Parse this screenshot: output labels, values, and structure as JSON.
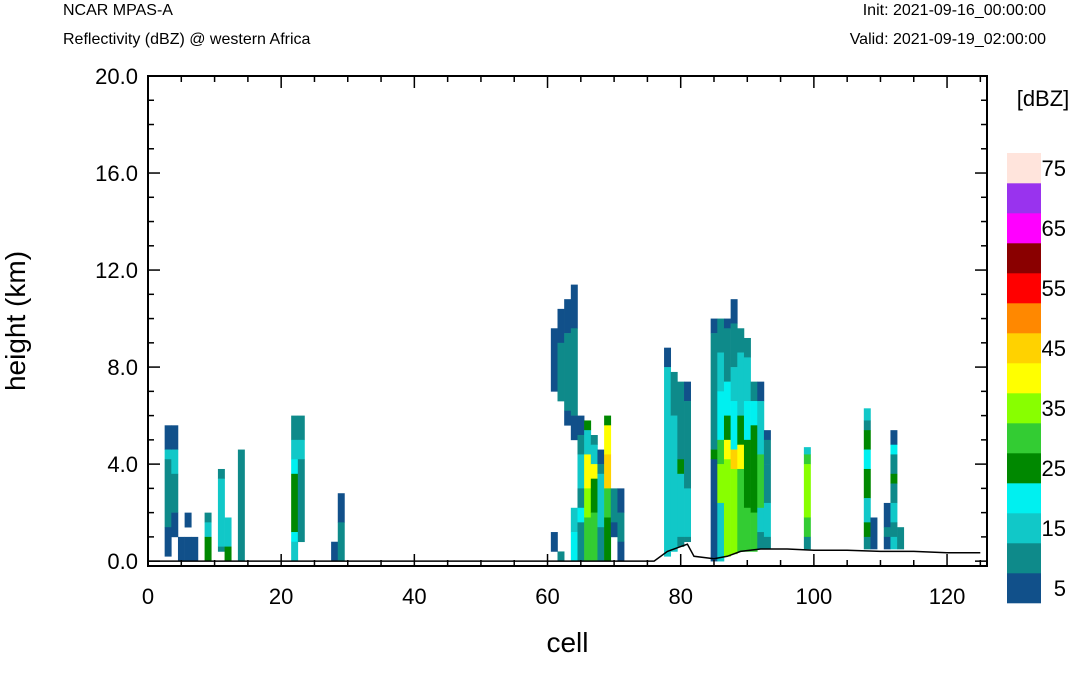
{
  "header": {
    "title": "NCAR MPAS-A",
    "subtitle": "Reflectivity (dBZ) @ western Africa",
    "init": "Init: 2021-09-16_00:00:00",
    "valid": "Valid: 2021-09-19_02:00:00"
  },
  "chart_data": {
    "type": "heatmap",
    "title": "Reflectivity (dBZ) @ western Africa",
    "xlabel": "cell",
    "ylabel": "height (km)",
    "xlim": [
      0,
      126
    ],
    "ylim": [
      -0.2,
      20.0
    ],
    "x_ticks": [
      0,
      20,
      40,
      60,
      80,
      100,
      120
    ],
    "x_tick_labels": [
      "0",
      "20",
      "40",
      "60",
      "80",
      "100",
      "120"
    ],
    "y_ticks": [
      0,
      4,
      8,
      12,
      16,
      20
    ],
    "y_tick_labels": [
      "0.0",
      "4.0",
      "8.0",
      "12.0",
      "16.0",
      "20.0"
    ],
    "colorbar": {
      "unit_label": "[dBZ]",
      "levels": [
        5,
        10,
        15,
        20,
        25,
        30,
        35,
        40,
        45,
        50,
        55,
        60,
        65,
        70,
        75
      ],
      "labels": [
        "5",
        "15",
        "25",
        "35",
        "45",
        "55",
        "65",
        "75"
      ],
      "colors": [
        "#11508a",
        "#0e8a8a",
        "#11c8c8",
        "#00f0f0",
        "#008800",
        "#33cc33",
        "#88ff00",
        "#ffff00",
        "#ffd200",
        "#ff8800",
        "#ff0000",
        "#8a0000",
        "#ff00ff",
        "#9933ee",
        "#ffe4dc"
      ]
    },
    "terrain_height_km": [
      [
        0,
        0.0
      ],
      [
        76,
        0.0
      ],
      [
        78,
        0.4
      ],
      [
        80,
        0.6
      ],
      [
        81,
        0.7
      ],
      [
        82,
        0.2
      ],
      [
        85,
        0.1
      ],
      [
        87,
        0.2
      ],
      [
        89,
        0.4
      ],
      [
        92,
        0.5
      ],
      [
        96,
        0.5
      ],
      [
        100,
        0.45
      ],
      [
        105,
        0.45
      ],
      [
        110,
        0.4
      ],
      [
        115,
        0.4
      ],
      [
        120,
        0.35
      ],
      [
        125,
        0.35
      ]
    ],
    "columns": [
      {
        "x": 3,
        "segments": [
          [
            4.6,
            5.6,
            5
          ],
          [
            4.2,
            4.6,
            15
          ],
          [
            1.4,
            4.2,
            10
          ],
          [
            0.2,
            1.4,
            5
          ]
        ]
      },
      {
        "x": 4,
        "segments": [
          [
            4.6,
            5.6,
            5
          ],
          [
            3.6,
            4.6,
            15
          ],
          [
            2.0,
            3.6,
            10
          ],
          [
            1.0,
            2.0,
            5
          ]
        ]
      },
      {
        "x": 5,
        "segments": [
          [
            0,
            1.0,
            5
          ]
        ]
      },
      {
        "x": 6,
        "segments": [
          [
            1.4,
            2.0,
            5
          ],
          [
            0,
            1.0,
            5
          ]
        ]
      },
      {
        "x": 7,
        "segments": [
          [
            0,
            1.0,
            5
          ]
        ]
      },
      {
        "x": 9,
        "segments": [
          [
            1.6,
            2.0,
            10
          ],
          [
            1.0,
            1.6,
            15
          ],
          [
            0,
            1.0,
            25
          ]
        ]
      },
      {
        "x": 11,
        "segments": [
          [
            3.4,
            3.8,
            10
          ],
          [
            0.6,
            3.4,
            15
          ],
          [
            0.4,
            0.6,
            10
          ]
        ]
      },
      {
        "x": 12,
        "segments": [
          [
            1.4,
            1.8,
            15
          ],
          [
            0.6,
            1.4,
            15
          ],
          [
            0,
            0.6,
            25
          ]
        ]
      },
      {
        "x": 14,
        "segments": [
          [
            0,
            4.6,
            10
          ]
        ]
      },
      {
        "x": 22,
        "segments": [
          [
            5.0,
            6.0,
            10
          ],
          [
            4.2,
            5.0,
            15
          ],
          [
            3.6,
            4.2,
            20
          ],
          [
            1.2,
            3.6,
            25
          ],
          [
            0.8,
            1.2,
            20
          ],
          [
            0,
            0.8,
            15
          ]
        ]
      },
      {
        "x": 23,
        "segments": [
          [
            5.0,
            6.0,
            10
          ],
          [
            4.2,
            5.0,
            15
          ],
          [
            0.8,
            4.2,
            10
          ]
        ]
      },
      {
        "x": 28,
        "segments": [
          [
            0,
            0.8,
            5
          ]
        ]
      },
      {
        "x": 29,
        "segments": [
          [
            1.6,
            2.8,
            5
          ],
          [
            0,
            1.6,
            10
          ]
        ]
      },
      {
        "x": 61,
        "segments": [
          [
            7.0,
            9.6,
            5
          ],
          [
            0.4,
            1.2,
            5
          ]
        ]
      },
      {
        "x": 62,
        "segments": [
          [
            9.0,
            10.4,
            5
          ],
          [
            6.6,
            9.0,
            10
          ],
          [
            0,
            0.4,
            10
          ]
        ]
      },
      {
        "x": 63,
        "segments": [
          [
            9.4,
            10.8,
            5
          ],
          [
            6.2,
            9.4,
            10
          ],
          [
            5.6,
            6.2,
            5
          ]
        ]
      },
      {
        "x": 64,
        "segments": [
          [
            9.6,
            11.4,
            5
          ],
          [
            6.0,
            9.6,
            10
          ],
          [
            5.0,
            6.0,
            5
          ],
          [
            1.2,
            2.2,
            15
          ],
          [
            0,
            1.2,
            20
          ]
        ]
      },
      {
        "x": 65,
        "segments": [
          [
            5.2,
            6.0,
            5
          ],
          [
            4.4,
            5.2,
            10
          ],
          [
            3.0,
            4.4,
            15
          ],
          [
            2.2,
            3.0,
            10
          ],
          [
            1.6,
            2.2,
            20
          ],
          [
            0,
            1.6,
            10
          ]
        ]
      },
      {
        "x": 66,
        "segments": [
          [
            5.4,
            5.8,
            25
          ],
          [
            4.4,
            5.4,
            15
          ],
          [
            3.0,
            4.4,
            40
          ],
          [
            1.8,
            3.0,
            35
          ],
          [
            0,
            1.8,
            30
          ]
        ]
      },
      {
        "x": 67,
        "segments": [
          [
            4.8,
            5.2,
            10
          ],
          [
            4.0,
            4.8,
            15
          ],
          [
            3.4,
            4.0,
            40
          ],
          [
            2.0,
            3.4,
            25
          ],
          [
            0,
            2.0,
            30
          ]
        ]
      },
      {
        "x": 68,
        "segments": [
          [
            4.0,
            4.6,
            5
          ],
          [
            3.6,
            4.0,
            10
          ],
          [
            1.4,
            3.6,
            15
          ],
          [
            0,
            1.4,
            10
          ]
        ]
      },
      {
        "x": 69,
        "segments": [
          [
            5.6,
            6.0,
            25
          ],
          [
            4.4,
            5.6,
            40
          ],
          [
            3.0,
            4.4,
            45
          ],
          [
            1.8,
            3.0,
            30
          ],
          [
            0,
            1.8,
            25
          ]
        ]
      },
      {
        "x": 70,
        "segments": [
          [
            1.6,
            3.0,
            10
          ],
          [
            1.0,
            1.6,
            5
          ]
        ]
      },
      {
        "x": 71,
        "segments": [
          [
            2.0,
            3.0,
            5
          ],
          [
            0.8,
            2.0,
            10
          ],
          [
            0,
            0.8,
            5
          ]
        ]
      },
      {
        "x": 78,
        "segments": [
          [
            8.0,
            8.8,
            5
          ],
          [
            0.2,
            8.0,
            15
          ]
        ]
      },
      {
        "x": 79,
        "segments": [
          [
            6.0,
            7.8,
            10
          ],
          [
            0.4,
            6.0,
            15
          ]
        ]
      },
      {
        "x": 80,
        "segments": [
          [
            4.2,
            7.4,
            10
          ],
          [
            3.6,
            4.2,
            25
          ],
          [
            1.0,
            3.6,
            15
          ],
          [
            0.6,
            1.0,
            10
          ]
        ]
      },
      {
        "x": 81,
        "segments": [
          [
            6.6,
            7.4,
            5
          ],
          [
            3.0,
            6.6,
            10
          ],
          [
            1.0,
            3.0,
            15
          ],
          [
            0.8,
            1.0,
            10
          ]
        ]
      },
      {
        "x": 85,
        "segments": [
          [
            9.4,
            10.0,
            5
          ],
          [
            4.6,
            9.4,
            10
          ],
          [
            4.2,
            4.6,
            25
          ],
          [
            0,
            4.2,
            5
          ]
        ]
      },
      {
        "x": 86,
        "segments": [
          [
            8.6,
            10.0,
            10
          ],
          [
            7.0,
            8.6,
            15
          ],
          [
            5.0,
            7.0,
            20
          ],
          [
            4.0,
            5.0,
            30
          ],
          [
            2.4,
            4.0,
            35
          ],
          [
            0,
            2.4,
            15
          ]
        ]
      },
      {
        "x": 87,
        "segments": [
          [
            9.6,
            10.0,
            5
          ],
          [
            7.4,
            9.6,
            10
          ],
          [
            6.0,
            7.4,
            20
          ],
          [
            5.0,
            6.0,
            25
          ],
          [
            4.2,
            5.0,
            40
          ],
          [
            0.2,
            4.2,
            35
          ]
        ]
      },
      {
        "x": 88,
        "segments": [
          [
            9.8,
            10.8,
            5
          ],
          [
            8.0,
            9.8,
            10
          ],
          [
            6.6,
            8.0,
            15
          ],
          [
            4.6,
            6.6,
            20
          ],
          [
            3.8,
            4.6,
            45
          ],
          [
            0.3,
            3.8,
            35
          ]
        ]
      },
      {
        "x": 89,
        "segments": [
          [
            8.6,
            9.6,
            10
          ],
          [
            6.0,
            8.6,
            15
          ],
          [
            4.8,
            6.0,
            25
          ],
          [
            3.8,
            4.8,
            40
          ],
          [
            0.4,
            3.8,
            30
          ]
        ]
      },
      {
        "x": 90,
        "segments": [
          [
            8.4,
            9.2,
            10
          ],
          [
            6.6,
            8.4,
            15
          ],
          [
            5.0,
            6.6,
            20
          ],
          [
            2.2,
            5.0,
            25
          ],
          [
            0.4,
            2.2,
            30
          ]
        ]
      },
      {
        "x": 91,
        "segments": [
          [
            6.6,
            7.4,
            10
          ],
          [
            5.6,
            6.6,
            20
          ],
          [
            2.0,
            5.6,
            25
          ],
          [
            0.4,
            2.0,
            30
          ]
        ]
      },
      {
        "x": 92,
        "segments": [
          [
            6.6,
            7.4,
            5
          ],
          [
            4.4,
            6.6,
            15
          ],
          [
            2.2,
            4.4,
            30
          ],
          [
            1.2,
            2.2,
            15
          ],
          [
            0.5,
            1.2,
            10
          ]
        ]
      },
      {
        "x": 93,
        "segments": [
          [
            5.0,
            5.4,
            5
          ],
          [
            4.0,
            5.0,
            10
          ],
          [
            2.4,
            4.0,
            10
          ],
          [
            1.0,
            2.4,
            15
          ],
          [
            0.5,
            1.0,
            10
          ]
        ]
      },
      {
        "x": 99,
        "segments": [
          [
            4.4,
            4.7,
            15
          ],
          [
            4.0,
            4.4,
            30
          ],
          [
            1.8,
            4.0,
            35
          ],
          [
            1.0,
            1.8,
            30
          ],
          [
            0.5,
            1.0,
            10
          ]
        ]
      },
      {
        "x": 108,
        "segments": [
          [
            5.8,
            6.3,
            15
          ],
          [
            5.4,
            5.8,
            10
          ],
          [
            4.6,
            5.4,
            25
          ],
          [
            3.8,
            4.6,
            20
          ],
          [
            2.6,
            3.8,
            25
          ],
          [
            1.6,
            2.6,
            15
          ],
          [
            1.0,
            1.6,
            25
          ],
          [
            0.5,
            1.0,
            10
          ]
        ]
      },
      {
        "x": 109,
        "segments": [
          [
            0.5,
            1.8,
            5
          ]
        ]
      },
      {
        "x": 111,
        "segments": [
          [
            1.4,
            2.4,
            5
          ],
          [
            1.0,
            1.4,
            10
          ],
          [
            0.5,
            1.0,
            5
          ]
        ]
      },
      {
        "x": 112,
        "segments": [
          [
            4.8,
            5.4,
            5
          ],
          [
            4.4,
            4.8,
            20
          ],
          [
            3.6,
            4.4,
            10
          ],
          [
            3.2,
            3.6,
            25
          ],
          [
            2.4,
            3.2,
            10
          ],
          [
            1.6,
            2.4,
            15
          ],
          [
            1.0,
            1.6,
            10
          ],
          [
            0.5,
            1.0,
            15
          ]
        ]
      },
      {
        "x": 113,
        "segments": [
          [
            0.5,
            1.4,
            10
          ]
        ]
      }
    ]
  }
}
